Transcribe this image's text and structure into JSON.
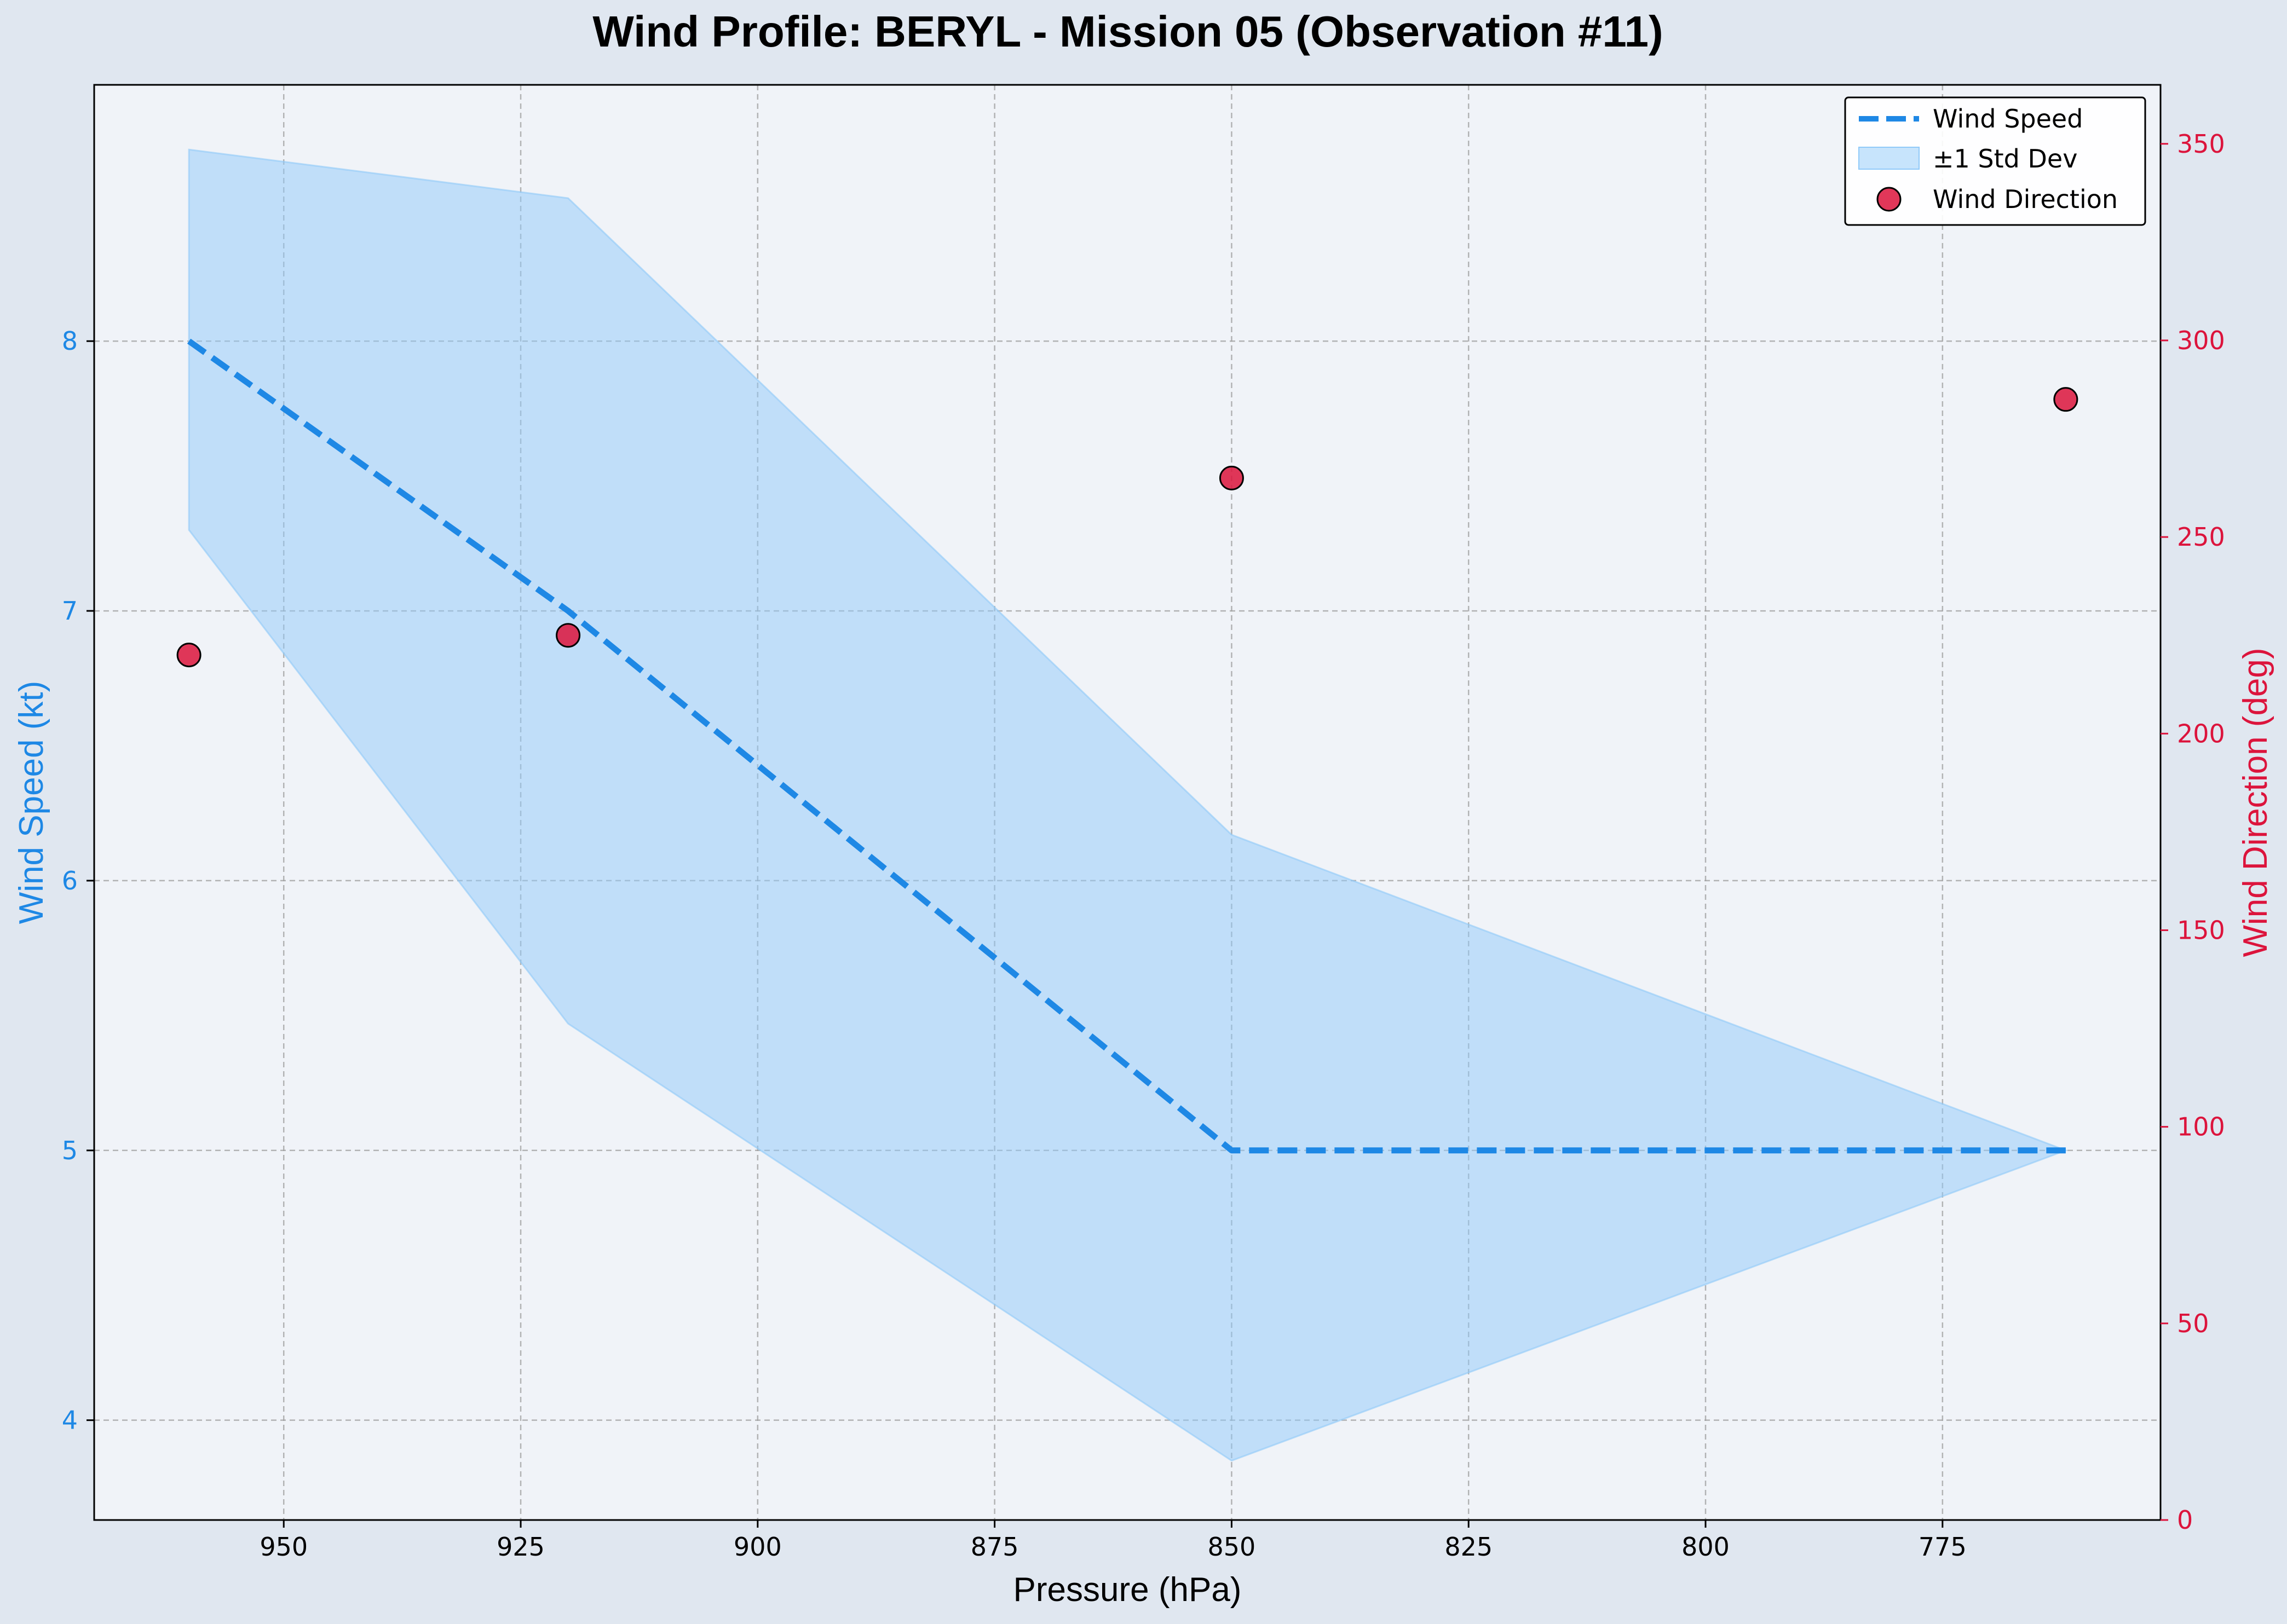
{
  "chart_data": {
    "type": "line",
    "title": "Wind Profile: BERYL - Mission 05 (Observation #11)",
    "xlabel": "Pressure (hPa)",
    "ylabel_left": "Wind Speed (kt)",
    "ylabel_right": "Wind Direction (deg)",
    "x_inverted": true,
    "xlim": [
      970,
      752
    ],
    "xticks": [
      950,
      925,
      900,
      875,
      850,
      825,
      800,
      775
    ],
    "ylim_left": [
      3.63,
      8.95
    ],
    "yticks_left": [
      4,
      5,
      6,
      7,
      8
    ],
    "ylim_right": [
      0,
      365
    ],
    "yticks_right": [
      0,
      50,
      100,
      150,
      200,
      250,
      300,
      350
    ],
    "grid": true,
    "legend_position": "top-right",
    "pressure": [
      960,
      920,
      850,
      762
    ],
    "series": [
      {
        "name": "Wind Speed",
        "kind": "dashed-line",
        "axis": "left",
        "values": [
          8,
          7,
          5,
          5
        ],
        "color": "#1e88e5"
      },
      {
        "name": "±1 Std Dev",
        "kind": "band",
        "axis": "left",
        "lower": [
          7.3,
          5.47,
          3.85,
          5.0
        ],
        "upper": [
          8.71,
          8.53,
          6.17,
          5.0
        ],
        "color": "#90caf9"
      },
      {
        "name": "Wind Direction",
        "kind": "scatter",
        "axis": "right",
        "values": [
          220,
          225,
          265,
          285
        ],
        "color": "#dc143c"
      }
    ],
    "colors": {
      "figure_bg": "#e0e7f0",
      "plot_bg": "#f0f3f8",
      "speed": "#1e88e5",
      "direction": "#dc143c",
      "band": "#90caf9"
    }
  }
}
